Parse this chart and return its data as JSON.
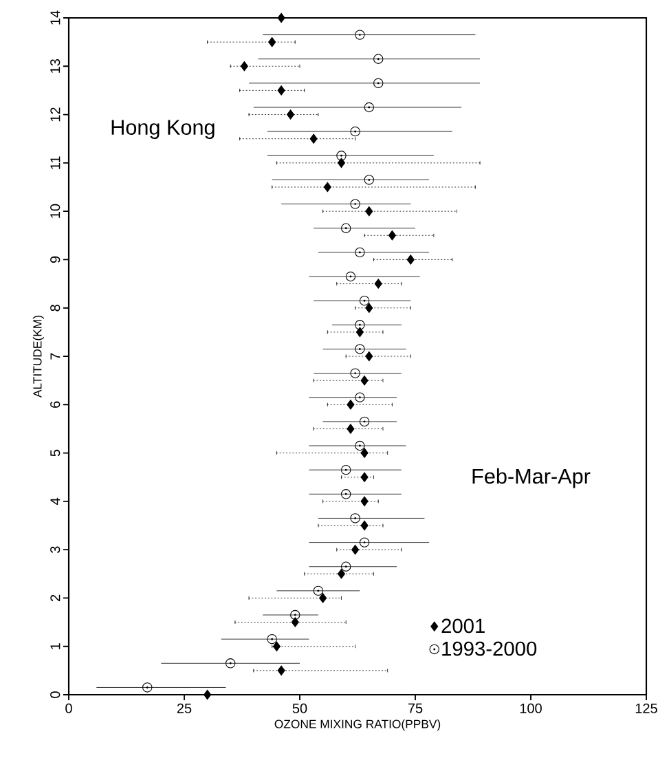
{
  "chart_data": {
    "type": "scatter",
    "xlabel": "OZONE MIXING RATIO(PPBV)",
    "ylabel": "ALTITUDE(KM)",
    "annotations": [
      "Hong Kong",
      "Feb-Mar-Apr"
    ],
    "xlim": [
      0,
      125
    ],
    "xticks": [
      0,
      25,
      50,
      75,
      100,
      125
    ],
    "ylim": [
      0,
      14
    ],
    "yticks": [
      0,
      1,
      2,
      3,
      4,
      5,
      6,
      7,
      8,
      9,
      10,
      11,
      12,
      13,
      14
    ],
    "legend": "bottom right",
    "grid": false,
    "series": [
      {
        "name": "2001",
        "color": "#000000",
        "marker": "diamond",
        "line_style": "dotted",
        "x": [
          30,
          46,
          45,
          49,
          55,
          59,
          62,
          64,
          64,
          64,
          64,
          61,
          61,
          64,
          65,
          63,
          65,
          67,
          74,
          70,
          65,
          56,
          59,
          53,
          48,
          46,
          38,
          44,
          46
        ],
        "values": [
          0,
          0.5,
          1,
          1.5,
          2,
          2.5,
          3,
          3.5,
          4,
          4.5,
          5,
          5.5,
          6,
          6.5,
          7,
          7.5,
          8,
          8.5,
          9,
          9.5,
          10,
          10.5,
          11,
          11.5,
          12,
          12.5,
          13,
          13.5,
          14
        ],
        "xerrors": [
          null,
          [
            40,
            69
          ],
          [
            44,
            62
          ],
          [
            36,
            60
          ],
          [
            39,
            59
          ],
          [
            51,
            66
          ],
          [
            58,
            72
          ],
          [
            54,
            68
          ],
          [
            55,
            67
          ],
          [
            59,
            66
          ],
          [
            45,
            69
          ],
          [
            53,
            68
          ],
          [
            56,
            70
          ],
          [
            53,
            68
          ],
          [
            60,
            74
          ],
          [
            56,
            68
          ],
          [
            62,
            74
          ],
          [
            58,
            72
          ],
          [
            66,
            83
          ],
          [
            64,
            79
          ],
          [
            55,
            84
          ],
          [
            44,
            88
          ],
          [
            45,
            89
          ],
          [
            37,
            62
          ],
          [
            39,
            54
          ],
          [
            37,
            51
          ],
          [
            35,
            50
          ],
          [
            30,
            49
          ],
          null
        ]
      },
      {
        "name": "1993-2000",
        "color": "#000000",
        "marker": "circle",
        "line_style": "solid",
        "x": [
          17,
          35,
          44,
          49,
          54,
          60,
          64,
          62,
          60,
          60,
          63,
          64,
          63,
          62,
          63,
          63,
          64,
          61,
          63,
          60,
          62,
          65,
          59,
          62,
          65,
          67,
          67,
          63
        ],
        "values": [
          0.15,
          0.65,
          1.15,
          1.65,
          2.15,
          2.65,
          3.15,
          3.65,
          4.15,
          4.65,
          5.15,
          5.65,
          6.15,
          6.65,
          7.15,
          7.65,
          8.15,
          8.65,
          9.15,
          9.65,
          10.15,
          10.65,
          11.15,
          11.65,
          12.15,
          12.65,
          13.15,
          13.65
        ],
        "xerrors": [
          [
            6,
            34
          ],
          [
            20,
            50
          ],
          [
            33,
            52
          ],
          [
            42,
            54
          ],
          [
            45,
            63
          ],
          [
            52,
            71
          ],
          [
            52,
            78
          ],
          [
            54,
            77
          ],
          [
            52,
            72
          ],
          [
            52,
            72
          ],
          [
            52,
            73
          ],
          [
            55,
            71
          ],
          [
            52,
            71
          ],
          [
            53,
            72
          ],
          [
            55,
            73
          ],
          [
            57,
            72
          ],
          [
            53,
            74
          ],
          [
            52,
            76
          ],
          [
            54,
            78
          ],
          [
            53,
            75
          ],
          [
            46,
            74
          ],
          [
            44,
            78
          ],
          [
            43,
            79
          ],
          [
            43,
            83
          ],
          [
            40,
            85
          ],
          [
            39,
            89
          ],
          [
            41,
            89
          ],
          [
            42,
            88
          ]
        ]
      }
    ]
  }
}
